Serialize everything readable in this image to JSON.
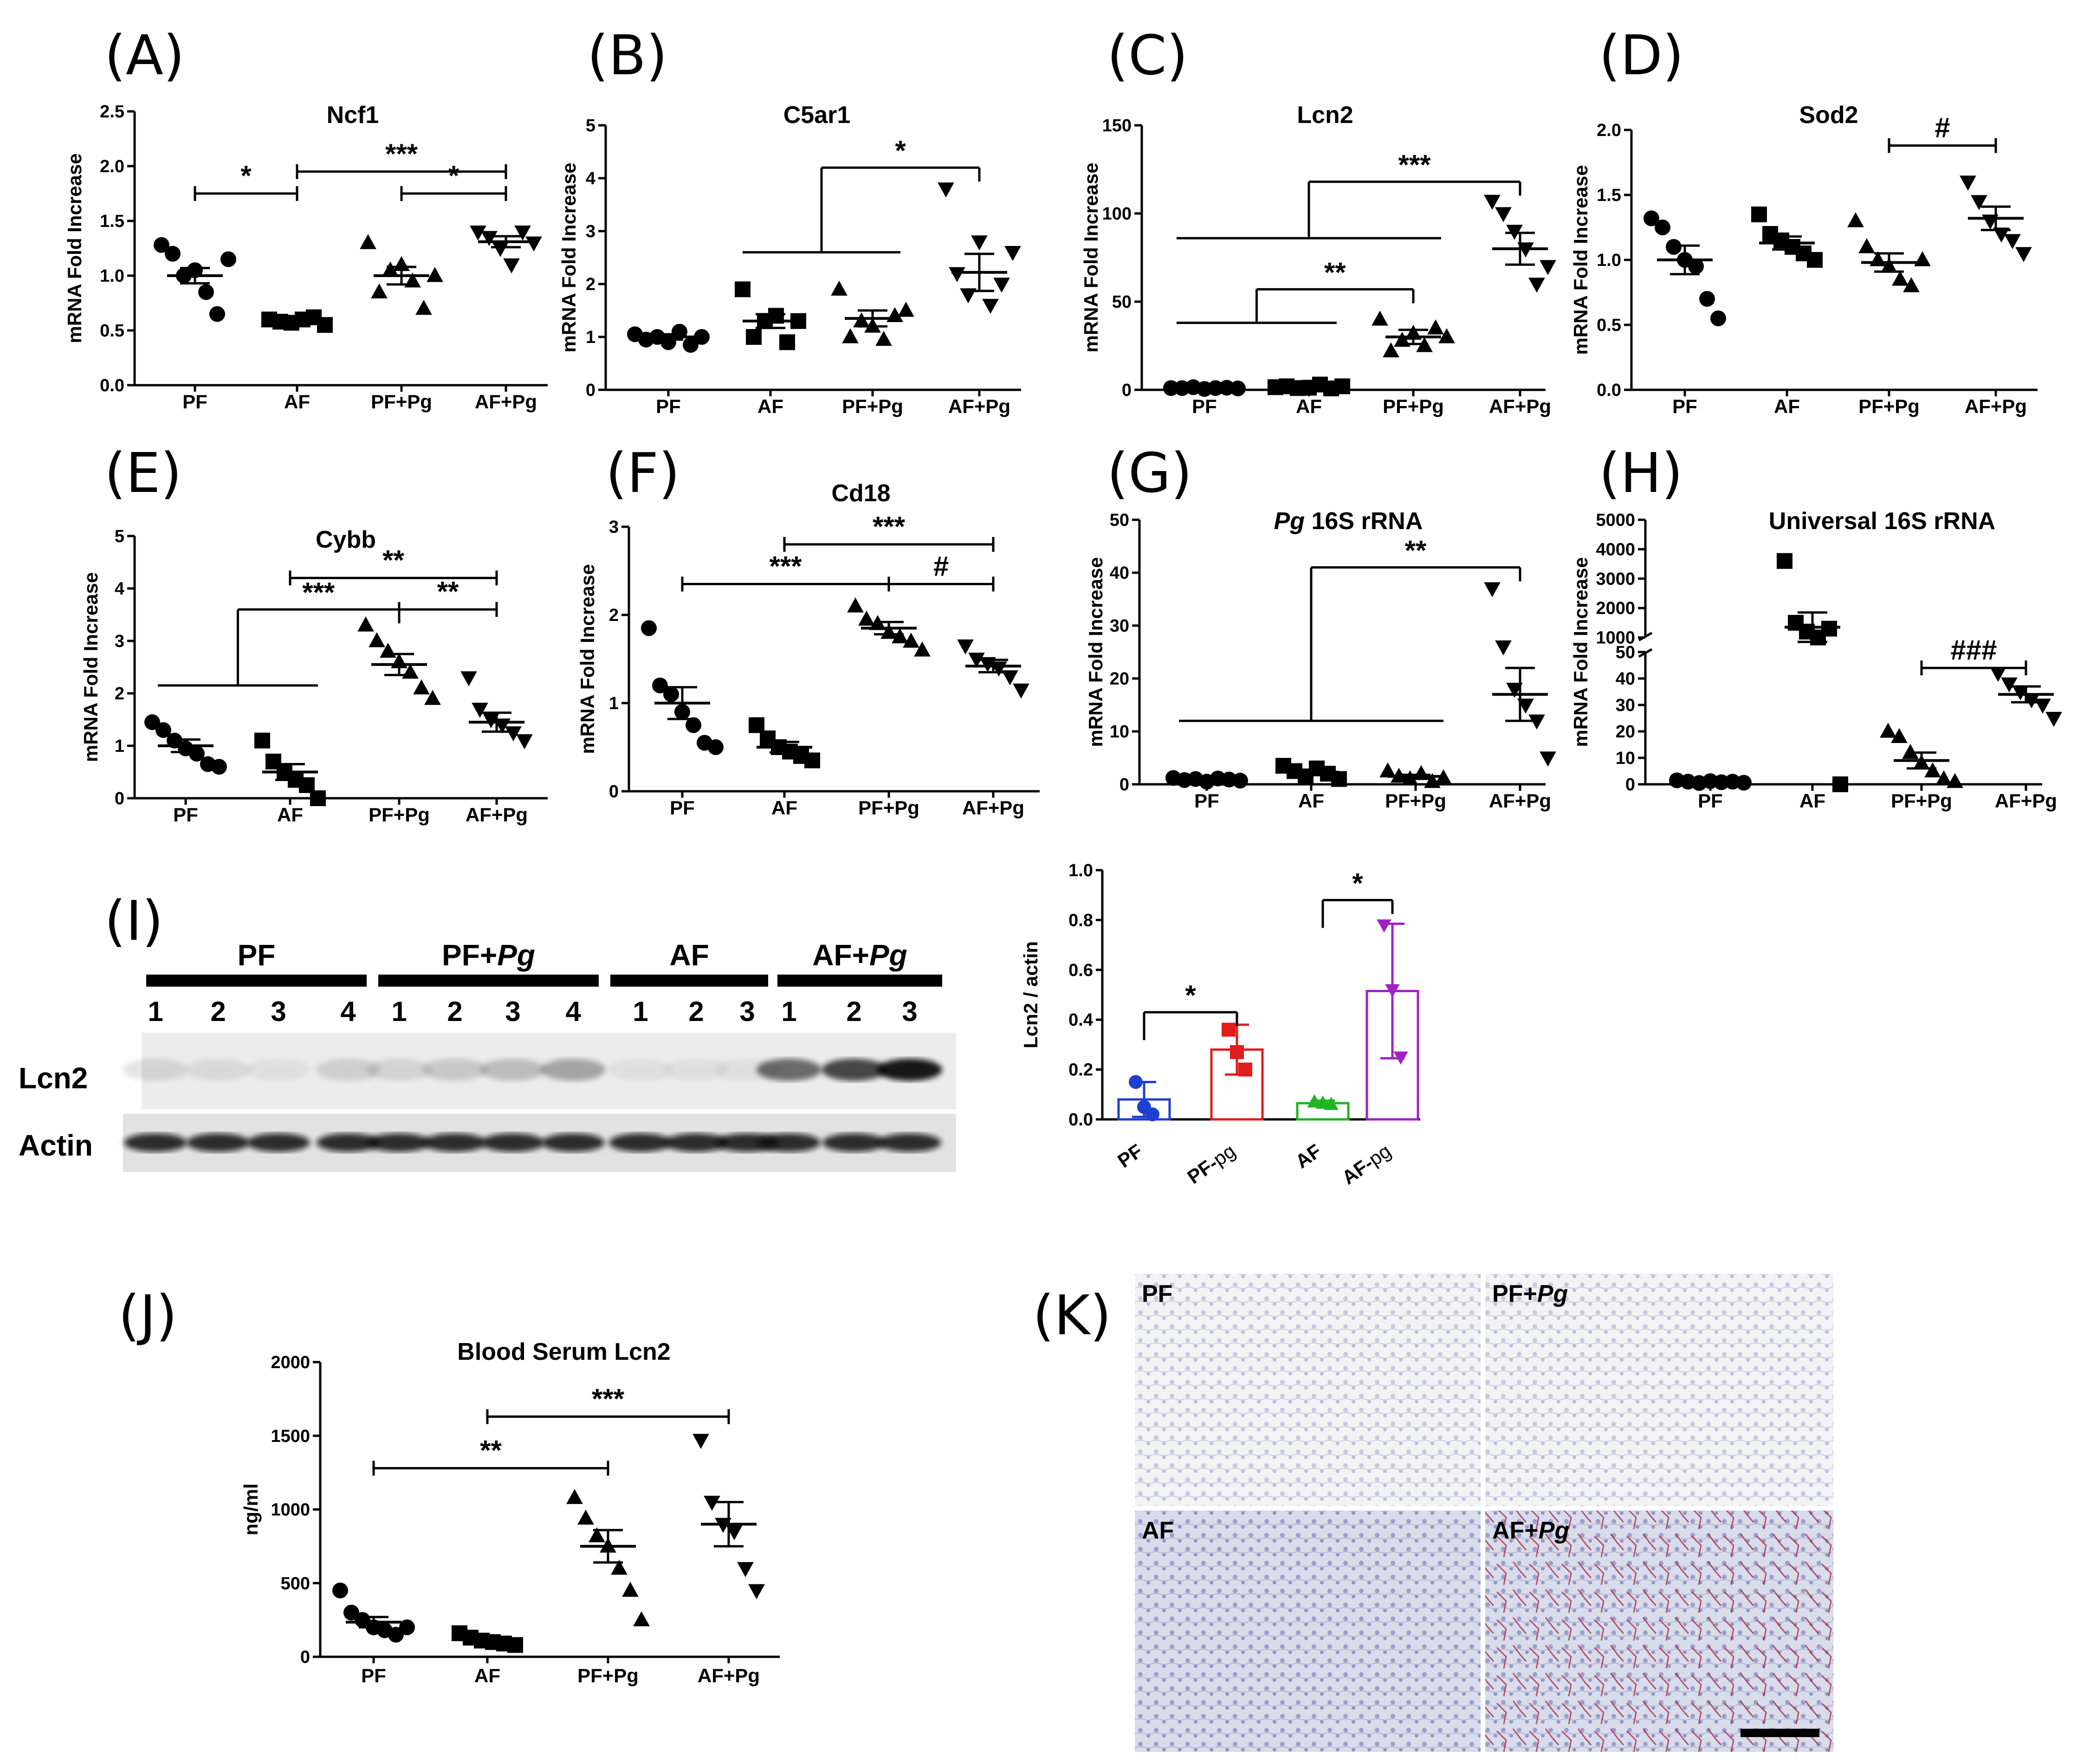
{
  "colors": {
    "black": "#000000",
    "PF": "#1f3fd0",
    "PF-pg": "#e21b1b",
    "AF": "#22b322",
    "AF-pg": "#a020c8",
    "tissue_bg": "#eef0f6",
    "stain_red": "#b02040"
  },
  "chart_data": [
    {
      "panel": "(A)",
      "type": "scatter",
      "title": "Ncf1",
      "ylabel": "mRNA Fold Increase",
      "categories": [
        "PF",
        "AF",
        "PF+Pg",
        "AF+Pg"
      ],
      "ylim": [
        0,
        2.5
      ],
      "yticks": [
        "0.0",
        "0.5",
        "1.0",
        "1.5",
        "2.0",
        "2.5"
      ],
      "markers": [
        "circle",
        "square",
        "triangle",
        "triangle-down"
      ],
      "points": [
        [
          1.28,
          1.2,
          1.0,
          1.05,
          0.85,
          0.65,
          1.15
        ],
        [
          0.6,
          0.58,
          0.57,
          0.6,
          0.62,
          0.55
        ],
        [
          1.3,
          0.85,
          1.05,
          1.1,
          0.95,
          0.7,
          1.0
        ],
        [
          1.4,
          1.35,
          1.25,
          1.1,
          1.4,
          1.3
        ]
      ],
      "mean": [
        1.0,
        0.6,
        1.0,
        1.31
      ],
      "sem": [
        0.07,
        0.02,
        0.08,
        0.05
      ],
      "significance": [
        {
          "from": 0,
          "to": 1,
          "y": 1.75,
          "label": "*",
          "style": "bracket"
        },
        {
          "from": 1,
          "to": 3,
          "y": 1.95,
          "label": "***",
          "style": "bracket"
        },
        {
          "from": 2,
          "to": 3,
          "y": 1.75,
          "label": "*",
          "style": "bracket"
        }
      ]
    },
    {
      "panel": "(B)",
      "type": "scatter",
      "title": "C5ar1",
      "ylabel": "mRNA Fold Increase",
      "categories": [
        "PF",
        "AF",
        "PF+Pg",
        "AF+Pg"
      ],
      "ylim": [
        0,
        5
      ],
      "yticks": [
        "0",
        "1",
        "2",
        "3",
        "4",
        "5"
      ],
      "markers": [
        "circle",
        "circle",
        "square",
        "triangle",
        "triangle-down"
      ],
      "points": [
        [
          1.05,
          0.95,
          1.0,
          0.9,
          1.1,
          0.85,
          1.0
        ],
        [
          1.9,
          1.0,
          1.3,
          1.4,
          0.9,
          1.3
        ],
        [
          1.9,
          1.0,
          1.3,
          1.2,
          0.95,
          1.4,
          1.5
        ],
        [
          3.8,
          2.2,
          1.8,
          2.8,
          1.6,
          2.0,
          2.6
        ]
      ],
      "mean": [
        1.0,
        1.3,
        1.35,
        2.22
      ],
      "sem": [
        0.05,
        0.13,
        0.15,
        0.35
      ],
      "significance": [
        {
          "left_from": 1,
          "left_to": 2,
          "right": 3,
          "y_low": 2.6,
          "y_high": 4.2,
          "label": "*",
          "style": "group"
        }
      ]
    },
    {
      "panel": "(C)",
      "type": "scatter",
      "title": "Lcn2",
      "ylabel": "mRNA Fold Increase",
      "categories": [
        "PF",
        "AF",
        "PF+Pg",
        "AF+Pg"
      ],
      "ylim": [
        0,
        150
      ],
      "yticks": [
        "0",
        "50",
        "100",
        "150"
      ],
      "markers": [
        "circle",
        "square",
        "triangle",
        "triangle-down"
      ],
      "points": [
        [
          1,
          1,
          1.5,
          0.5,
          1,
          1.2,
          0.8
        ],
        [
          1.5,
          2,
          1,
          1.2,
          3,
          0.8,
          2
        ],
        [
          40,
          22,
          28,
          32,
          25,
          35,
          30
        ],
        [
          107,
          100,
          90,
          80,
          60,
          70
        ]
      ],
      "mean": [
        1.0,
        1.5,
        30,
        80
      ],
      "sem": [
        0.2,
        0.3,
        4,
        9
      ],
      "significance": [
        {
          "left_from": 0,
          "left_to": 1,
          "right": 2,
          "y_low": 38,
          "y_high": 57,
          "label": "**",
          "style": "group"
        },
        {
          "left_from": 0,
          "left_to": 2,
          "right": 3,
          "y_low": 86,
          "y_high": 118,
          "label": "***",
          "style": "group"
        }
      ]
    },
    {
      "panel": "(D)",
      "type": "scatter",
      "title": "Sod2",
      "ylabel": "mRNA Fold Increase",
      "categories": [
        "PF",
        "AF",
        "PF+Pg",
        "AF+Pg"
      ],
      "ylim": [
        0,
        2.0
      ],
      "yticks": [
        "0.0",
        "0.5",
        "1.0",
        "1.5",
        "2.0"
      ],
      "markers": [
        "circle",
        "square",
        "triangle",
        "triangle-down"
      ],
      "points": [
        [
          1.32,
          1.25,
          1.1,
          1.0,
          0.95,
          0.7,
          0.55
        ],
        [
          1.35,
          1.2,
          1.15,
          1.1,
          1.05,
          1.0
        ],
        [
          1.3,
          1.1,
          1.0,
          0.95,
          0.85,
          0.8,
          1.0
        ],
        [
          1.6,
          1.45,
          1.3,
          1.2,
          1.15,
          1.05
        ]
      ],
      "mean": [
        1.0,
        1.13,
        0.98,
        1.32
      ],
      "sem": [
        0.11,
        0.05,
        0.07,
        0.09
      ],
      "significance": [
        {
          "from": 2,
          "to": 3,
          "y": 1.88,
          "label": "#",
          "style": "bracket"
        }
      ]
    },
    {
      "panel": "(E)",
      "type": "scatter",
      "title": "Cybb",
      "ylabel": "mRNA Fold Increase",
      "categories": [
        "PF",
        "AF",
        "PF+Pg",
        "AF+Pg"
      ],
      "ylim": [
        0,
        5
      ],
      "yticks": [
        "0",
        "1",
        "2",
        "3",
        "4",
        "5"
      ],
      "markers": [
        "circle",
        "square",
        "triangle",
        "triangle-down"
      ],
      "points": [
        [
          1.45,
          1.3,
          1.1,
          0.95,
          0.85,
          0.65,
          0.6
        ],
        [
          1.1,
          0.7,
          0.5,
          0.35,
          0.25,
          0.0
        ],
        [
          3.3,
          3.0,
          2.8,
          2.6,
          2.4,
          2.1,
          1.9
        ],
        [
          2.3,
          1.7,
          1.5,
          1.4,
          1.25,
          1.1
        ]
      ],
      "mean": [
        1.0,
        0.5,
        2.55,
        1.45
      ],
      "sem": [
        0.12,
        0.15,
        0.2,
        0.18
      ],
      "significance": [
        {
          "left_from": 0,
          "left_to": 1,
          "right": 2,
          "y_low": 2.15,
          "y_high": 3.6,
          "label": "***",
          "style": "group"
        },
        {
          "from": 1,
          "to": 3,
          "y": 4.2,
          "label": "**",
          "style": "bracket"
        },
        {
          "from": 2,
          "to": 3,
          "y": 3.6,
          "label": "**",
          "style": "bracket"
        }
      ]
    },
    {
      "panel": "(F)",
      "type": "scatter",
      "title": "Cd18",
      "ylabel": "mRNA Fold Increase",
      "categories": [
        "PF",
        "AF",
        "PF+Pg",
        "AF+Pg"
      ],
      "ylim": [
        0,
        3
      ],
      "yticks": [
        "0",
        "1",
        "2",
        "3"
      ],
      "markers": [
        "circle",
        "square",
        "triangle",
        "triangle-down"
      ],
      "points": [
        [
          1.85,
          1.2,
          1.1,
          0.9,
          0.75,
          0.55,
          0.5
        ],
        [
          0.75,
          0.6,
          0.5,
          0.45,
          0.4,
          0.35
        ],
        [
          2.1,
          1.95,
          1.9,
          1.8,
          1.75,
          1.7,
          1.6
        ],
        [
          1.65,
          1.5,
          1.45,
          1.4,
          1.3,
          1.15
        ]
      ],
      "mean": [
        1.0,
        0.5,
        1.85,
        1.42
      ],
      "sem": [
        0.18,
        0.06,
        0.07,
        0.07
      ],
      "significance": [
        {
          "from": 0,
          "to": 2,
          "y": 2.35,
          "label": "***",
          "style": "bracket"
        },
        {
          "from": 1,
          "to": 3,
          "y": 2.8,
          "label": "***",
          "style": "bracket"
        },
        {
          "from": 2,
          "to": 3,
          "y": 2.35,
          "label": "#",
          "style": "bracket"
        }
      ]
    },
    {
      "panel": "(G)",
      "type": "scatter",
      "title": "Pg 16S rRNA",
      "title_italic_part": "Pg",
      "ylabel": "mRNA Fold Increase",
      "categories": [
        "PF",
        "AF",
        "PF+Pg",
        "AF+Pg"
      ],
      "ylim": [
        0,
        50
      ],
      "yticks": [
        "0",
        "10",
        "20",
        "30",
        "40",
        "50"
      ],
      "markers": [
        "circle",
        "square",
        "triangle",
        "triangle-down"
      ],
      "points": [
        [
          1.2,
          0.8,
          1.0,
          0.5,
          1.1,
          0.9,
          0.7
        ],
        [
          3.5,
          2.5,
          1.5,
          3.0,
          2.0,
          1.0
        ],
        [
          2.5,
          1.5,
          1.0,
          2.0,
          0.5,
          1.2
        ],
        [
          37,
          26,
          18,
          15,
          12,
          5
        ]
      ],
      "mean": [
        1.0,
        2.3,
        1.5,
        17
      ],
      "sem": [
        0.1,
        0.4,
        0.3,
        5
      ],
      "significance": [
        {
          "left_from": 0,
          "left_to": 2,
          "right": 3,
          "y_low": 12,
          "y_high": 41,
          "label": "**",
          "style": "group"
        }
      ]
    },
    {
      "panel": "(H)",
      "type": "scatter",
      "title": "Universal 16S rRNA",
      "ylabel": "mRNA Fold Increase",
      "categories": [
        "PF",
        "AF",
        "PF+Pg",
        "AF+Pg"
      ],
      "axis_break": {
        "lower": [
          0,
          50
        ],
        "upper": [
          1000,
          5000
        ]
      },
      "yticks_lower": [
        "0",
        "10",
        "20",
        "30",
        "40",
        "50"
      ],
      "yticks_upper": [
        "1000",
        "2000",
        "3000",
        "4000",
        "5000"
      ],
      "markers": [
        "circle",
        "square",
        "triangle",
        "triangle-down"
      ],
      "points": [
        [
          1.5,
          1,
          0.5,
          1.2,
          0.8,
          1,
          0.6
        ],
        [
          3600,
          1500,
          1200,
          1000,
          1300,
          0
        ],
        [
          20,
          18,
          12,
          8,
          5,
          2,
          1
        ],
        [
          42,
          38,
          35,
          32,
          30,
          25
        ]
      ],
      "mean": [
        1.0,
        1350,
        9,
        34
      ],
      "sem": [
        0.2,
        500,
        3,
        3
      ],
      "significance": [
        {
          "from": 2,
          "to": 3,
          "y": 44,
          "label": "###",
          "style": "bracket"
        }
      ]
    },
    {
      "panel": "(I)",
      "type": "bar",
      "ylabel": "Lcn2 / actin",
      "categories": [
        "PF",
        "PF-pg",
        "AF",
        "AF-pg"
      ],
      "category_parts": [
        [
          "PF",
          ""
        ],
        [
          "PF-",
          "pg"
        ],
        [
          "AF",
          ""
        ],
        [
          "AF-",
          "pg"
        ]
      ],
      "ylim": [
        0,
        1.0
      ],
      "yticks": [
        "0.0",
        "0.2",
        "0.4",
        "0.6",
        "0.8",
        "1.0"
      ],
      "values": [
        0.08,
        0.28,
        0.065,
        0.515
      ],
      "errors": [
        0.07,
        0.1,
        0.01,
        0.27
      ],
      "points": [
        [
          0.15,
          0.05,
          0.02
        ],
        [
          0.36,
          0.27,
          0.2
        ],
        [
          0.07,
          0.065,
          0.06
        ],
        [
          0.78,
          0.52,
          0.25
        ]
      ],
      "significance": [
        {
          "from": 0,
          "to": 1,
          "y": 0.43,
          "label": "*",
          "style": "bracket"
        },
        {
          "from": 2,
          "to": 3,
          "y": 0.88,
          "label": "*",
          "style": "bracket"
        }
      ]
    },
    {
      "panel": "(J)",
      "type": "scatter",
      "title": "Blood Serum Lcn2",
      "ylabel": "ng/ml",
      "categories": [
        "PF",
        "AF",
        "PF+Pg",
        "AF+Pg"
      ],
      "ylim": [
        0,
        2000
      ],
      "yticks": [
        "0",
        "500",
        "1000",
        "1500",
        "2000"
      ],
      "markers": [
        "circle",
        "square",
        "triangle",
        "triangle-down"
      ],
      "points": [
        [
          450,
          300,
          250,
          200,
          180,
          150,
          200
        ],
        [
          160,
          130,
          110,
          100,
          90,
          80
        ],
        [
          1080,
          940,
          820,
          750,
          600,
          450,
          250
        ],
        [
          1470,
          1050,
          900,
          850,
          600,
          450
        ]
      ],
      "mean": [
        235,
        115,
        750,
        900
      ],
      "sem": [
        35,
        12,
        110,
        150
      ],
      "significance": [
        {
          "from": 0,
          "to": 2,
          "y": 1280,
          "label": "**",
          "style": "bracket"
        },
        {
          "from": 1,
          "to": 3,
          "y": 1630,
          "label": "***",
          "style": "bracket"
        }
      ]
    }
  ],
  "western_blot": {
    "panel": "(I)",
    "groups": [
      {
        "label": "PF",
        "label_plain": "PF",
        "label_italic": "",
        "lanes": [
          "1",
          "2",
          "3",
          "4"
        ]
      },
      {
        "label": "PF+Pg",
        "label_plain": "PF+",
        "label_italic": "Pg",
        "lanes": [
          "1",
          "2",
          "3",
          "4"
        ]
      },
      {
        "label": "AF",
        "label_plain": "AF",
        "label_italic": "",
        "lanes": [
          "1",
          "2",
          "3"
        ]
      },
      {
        "label": "AF+Pg",
        "label_plain": "AF+",
        "label_italic": "Pg",
        "lanes": [
          "1",
          "2",
          "3"
        ]
      }
    ],
    "rows": [
      "Lcn2",
      "Actin"
    ]
  },
  "histology": {
    "panel": "(K)",
    "images": [
      {
        "label_plain": "PF",
        "label_italic": ""
      },
      {
        "label_plain": "PF+",
        "label_italic": "Pg"
      },
      {
        "label_plain": "AF",
        "label_italic": ""
      },
      {
        "label_plain": "AF+",
        "label_italic": "Pg"
      }
    ]
  }
}
